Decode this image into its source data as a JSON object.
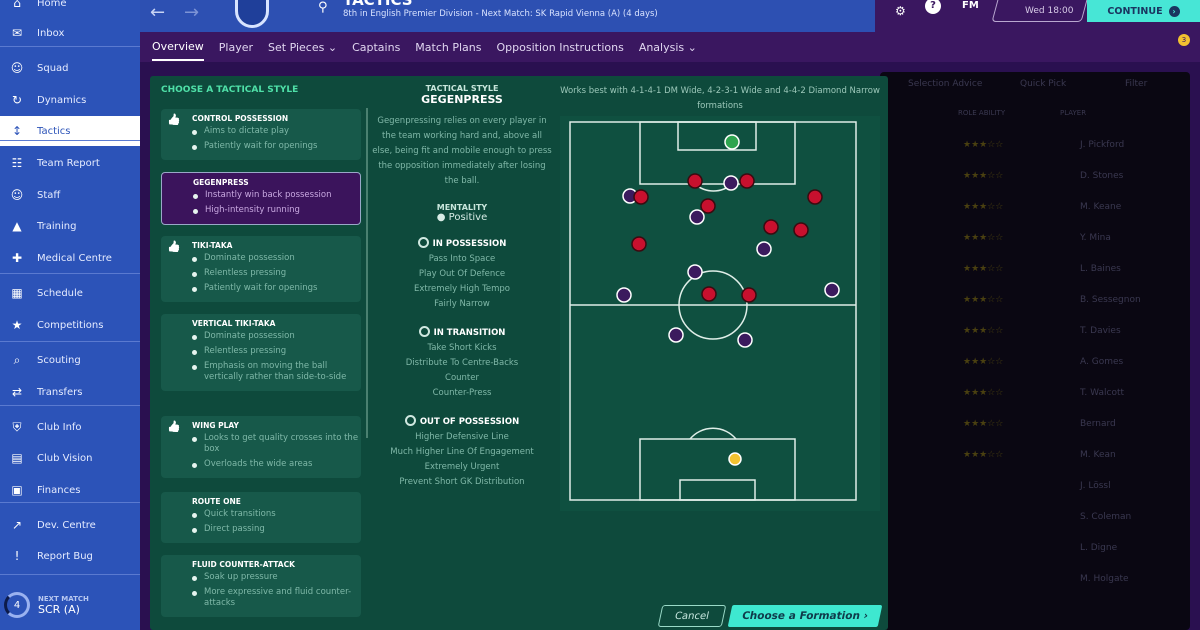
{
  "sidebar": {
    "items": [
      {
        "label": "Home",
        "icon": "home-icon"
      },
      {
        "label": "Inbox",
        "icon": "inbox-icon"
      },
      {
        "label": "Squad",
        "icon": "squad-icon"
      },
      {
        "label": "Dynamics",
        "icon": "dynamics-icon"
      },
      {
        "label": "Tactics",
        "icon": "tactics-icon",
        "active": true
      },
      {
        "label": "Team Report",
        "icon": "clipboard-icon"
      },
      {
        "label": "Staff",
        "icon": "staff-icon"
      },
      {
        "label": "Training",
        "icon": "training-icon"
      },
      {
        "label": "Medical Centre",
        "icon": "medical-icon"
      },
      {
        "label": "Schedule",
        "icon": "calendar-icon"
      },
      {
        "label": "Competitions",
        "icon": "trophy-icon"
      },
      {
        "label": "Scouting",
        "icon": "search-icon"
      },
      {
        "label": "Transfers",
        "icon": "transfer-icon"
      },
      {
        "label": "Club Info",
        "icon": "shield-icon"
      },
      {
        "label": "Club Vision",
        "icon": "briefcase-icon"
      },
      {
        "label": "Finances",
        "icon": "money-icon"
      },
      {
        "label": "Dev. Centre",
        "icon": "chart-icon"
      },
      {
        "label": "Report Bug",
        "icon": "alert-icon"
      }
    ],
    "next_match": {
      "label": "NEXT MATCH",
      "value": "SCR (A)",
      "days": "4"
    }
  },
  "header": {
    "title": "Tactics",
    "subtitle": "8th in English Premier Division - Next Match: SK Rapid Vienna (A) (4 days)",
    "fm": "FM",
    "day": "Wed 18:00",
    "continue": "CONTINUE",
    "notifications": "3"
  },
  "tabs": [
    {
      "label": "Overview",
      "active": true
    },
    {
      "label": "Player"
    },
    {
      "label": "Set Pieces ⌄"
    },
    {
      "label": "Captains"
    },
    {
      "label": "Match Plans"
    },
    {
      "label": "Opposition Instructions"
    },
    {
      "label": "Analysis ⌄"
    }
  ],
  "background_panel": {
    "buttons": [
      "Selection Advice",
      "Quick Pick",
      "Filter"
    ],
    "columns": [
      "ROLE ABILITY",
      "PLAYER"
    ],
    "players": [
      "J. Pickford",
      "D. Stones",
      "M. Keane",
      "Y. Mina",
      "L. Baines",
      "B. Sessegnon",
      "T. Davies",
      "A. Gomes",
      "T. Walcott",
      "Bernard",
      "M. Kean",
      "J. Lössl",
      "S. Coleman",
      "L. Digne",
      "M. Holgate"
    ]
  },
  "dialog": {
    "heading": "CHOOSE A TACTICAL STYLE",
    "styles": [
      {
        "name": "CONTROL POSSESSION",
        "recommended": true,
        "bullets": [
          "Aims to dictate play",
          "Patiently wait for openings"
        ]
      },
      {
        "name": "GEGENPRESS",
        "selected": true,
        "bullets": [
          "Instantly win back possession",
          "High-intensity running"
        ]
      },
      {
        "name": "TIKI-TAKA",
        "recommended": true,
        "bullets": [
          "Dominate possession",
          "Relentless pressing",
          "Patiently wait for openings"
        ]
      },
      {
        "name": "VERTICAL TIKI-TAKA",
        "bullets": [
          "Dominate possession",
          "Relentless pressing",
          "Emphasis on moving the ball vertically rather than side-to-side"
        ]
      },
      {
        "name": "WING PLAY",
        "recommended": true,
        "bullets": [
          "Looks to get quality crosses into the box",
          "Overloads the wide areas"
        ]
      },
      {
        "name": "ROUTE ONE",
        "bullets": [
          "Quick transitions",
          "Direct passing"
        ]
      },
      {
        "name": "FLUID COUNTER-ATTACK",
        "bullets": [
          "Soak up pressure",
          "More expressive and fluid counter-attacks"
        ]
      }
    ],
    "detail": {
      "label": "TACTICAL STYLE",
      "name": "GEGENPRESS",
      "description": "Gegenpressing relies on every player in the team working hard and, above all else, being fit and mobile enough to press the opposition immediately after losing the ball.",
      "mentality_label": "MENTALITY",
      "mentality": "Positive",
      "in_possession": {
        "title": "IN POSSESSION",
        "items": [
          "Pass Into Space",
          "Play Out Of Defence",
          "Extremely High Tempo",
          "Fairly Narrow"
        ]
      },
      "in_transition": {
        "title": "IN TRANSITION",
        "items": [
          "Take Short Kicks",
          "Distribute To Centre-Backs",
          "Counter",
          "Counter-Press"
        ]
      },
      "out_of_possession": {
        "title": "OUT OF POSSESSION",
        "items": [
          "Higher Defensive Line",
          "Much Higher Line Of Engagement",
          "Extremely Urgent",
          "Prevent Short GK Distribution"
        ]
      }
    },
    "works_best": "Works best with 4-1-4-1 DM Wide, 4-2-3-1 Wide and 4-4-2 Diamond Narrow formations",
    "cancel": "Cancel",
    "choose": "Choose a Formation ›"
  },
  "colors": {
    "sidebar": "#2c53b8",
    "dialog": "#0e4a3c",
    "accent": "#3ee8d0",
    "red_marker": "#c8102e",
    "purple_marker": "#3b1a5e"
  }
}
